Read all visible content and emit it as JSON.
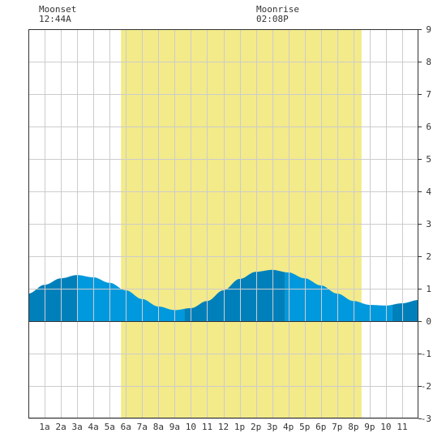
{
  "annotations": {
    "moonset": {
      "label": "Moonset",
      "time": "12:44A"
    },
    "moonrise": {
      "label": "Moonrise",
      "time": "02:08P"
    }
  },
  "chart_data": {
    "type": "area",
    "title": "",
    "xlabel": "",
    "ylabel": "",
    "x_tick_labels": [
      "1a",
      "2a",
      "3a",
      "4a",
      "5a",
      "6a",
      "7a",
      "8a",
      "9a",
      "10",
      "11",
      "12",
      "1p",
      "2p",
      "3p",
      "4p",
      "5p",
      "6p",
      "7p",
      "8p",
      "9p",
      "10",
      "11"
    ],
    "y_tick_labels": [
      "9",
      "8",
      "7",
      "6",
      "5",
      "4",
      "3",
      "2",
      "1",
      "0",
      "-1",
      "-2",
      "-3"
    ],
    "xlim": [
      0.0,
      24.0
    ],
    "ylim": [
      -3,
      9
    ],
    "grid": true,
    "daylight_hours": [
      5.7,
      20.5
    ],
    "tide_series": {
      "name": "",
      "points": [
        [
          0.0,
          0.85
        ],
        [
          1.0,
          1.12
        ],
        [
          2.0,
          1.32
        ],
        [
          3.0,
          1.42
        ],
        [
          4.0,
          1.35
        ],
        [
          5.0,
          1.18
        ],
        [
          6.0,
          0.95
        ],
        [
          7.0,
          0.68
        ],
        [
          8.0,
          0.45
        ],
        [
          9.0,
          0.34
        ],
        [
          10.0,
          0.4
        ],
        [
          11.0,
          0.62
        ],
        [
          12.0,
          0.95
        ],
        [
          13.0,
          1.3
        ],
        [
          14.0,
          1.52
        ],
        [
          15.0,
          1.58
        ],
        [
          16.0,
          1.5
        ],
        [
          17.0,
          1.32
        ],
        [
          18.0,
          1.1
        ],
        [
          19.0,
          0.85
        ],
        [
          20.0,
          0.62
        ],
        [
          21.0,
          0.5
        ],
        [
          22.0,
          0.48
        ],
        [
          23.0,
          0.55
        ],
        [
          24.0,
          0.65
        ]
      ]
    },
    "tide_bands": [
      {
        "from": 0.0,
        "to": 3.0,
        "shade": "dark"
      },
      {
        "from": 3.0,
        "to": 9.6,
        "shade": "light"
      },
      {
        "from": 9.6,
        "to": 15.8,
        "shade": "dark"
      },
      {
        "from": 15.8,
        "to": 22.4,
        "shade": "light"
      },
      {
        "from": 22.4,
        "to": 24.0,
        "shade": "dark"
      }
    ],
    "colors": {
      "daylight": "#f3ea8a",
      "tide_dark": "#0080bb",
      "tide_light": "#0099dd",
      "grid": "#cccccc",
      "axis": "#333333"
    }
  }
}
